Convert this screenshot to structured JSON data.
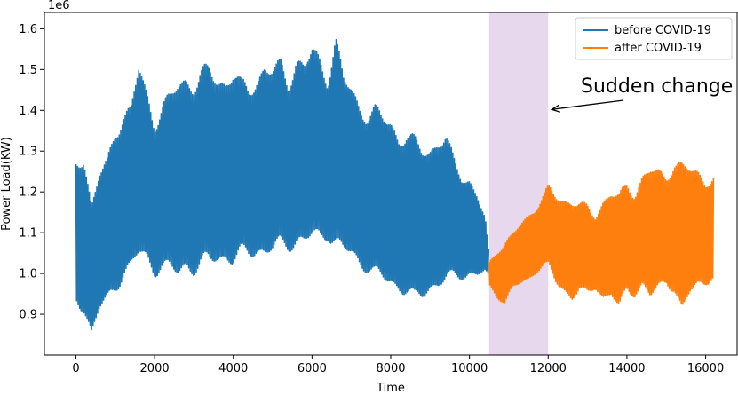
{
  "chart_data": {
    "type": "line",
    "xlabel": "Time",
    "ylabel": "Power Load(KW)",
    "y_offset_label": "1e6",
    "xlim": [
      -800,
      16800
    ],
    "ylim": [
      0.8,
      1.64
    ],
    "x_ticks": [
      0,
      2000,
      4000,
      6000,
      8000,
      10000,
      12000,
      14000,
      16000
    ],
    "x_tick_labels": [
      "0",
      "2000",
      "4000",
      "6000",
      "8000",
      "10000",
      "12000",
      "14000",
      "16000"
    ],
    "y_ticks": [
      0.9,
      1.0,
      1.1,
      1.2,
      1.3,
      1.4,
      1.5,
      1.6
    ],
    "y_tick_labels": [
      "0.9",
      "1.0",
      "1.1",
      "1.2",
      "1.3",
      "1.4",
      "1.5",
      "1.6"
    ],
    "grid": false,
    "legend_position": "top-right",
    "highlight_band": {
      "x": [
        10500,
        12000
      ],
      "color": "#e8d8ee"
    },
    "annotation": {
      "text": "Sudden change",
      "arrow_target": [
        12000,
        1.4
      ]
    },
    "series": [
      {
        "name": "before COVID-19",
        "color": "#1f77b4",
        "x": [
          0,
          200,
          400,
          600,
          800,
          1000,
          1200,
          1400,
          1600,
          1800,
          2000,
          2200,
          2400,
          2600,
          2800,
          3000,
          3200,
          3400,
          3600,
          3800,
          4000,
          4200,
          4400,
          4600,
          4800,
          5000,
          5200,
          5400,
          5600,
          5800,
          6000,
          6200,
          6400,
          6600,
          6800,
          7000,
          7200,
          7400,
          7600,
          7800,
          8000,
          8200,
          8400,
          8600,
          8800,
          9000,
          9200,
          9400,
          9600,
          9800,
          10000,
          10200,
          10400,
          10500
        ],
        "high": [
          1.29,
          1.31,
          1.18,
          1.26,
          1.29,
          1.37,
          1.41,
          1.42,
          1.53,
          1.46,
          1.39,
          1.43,
          1.45,
          1.49,
          1.5,
          1.49,
          1.51,
          1.52,
          1.5,
          1.49,
          1.52,
          1.48,
          1.47,
          1.5,
          1.53,
          1.52,
          1.53,
          1.49,
          1.55,
          1.53,
          1.57,
          1.54,
          1.5,
          1.6,
          1.5,
          1.47,
          1.43,
          1.41,
          1.42,
          1.4,
          1.39,
          1.35,
          1.36,
          1.34,
          1.32,
          1.32,
          1.34,
          1.35,
          1.29,
          1.25,
          1.24,
          1.2,
          1.14,
          1.05
        ],
        "low": [
          0.92,
          0.9,
          0.84,
          0.9,
          0.92,
          0.95,
          0.98,
          1.0,
          1.03,
          1.02,
          0.99,
          1.0,
          0.99,
          0.98,
          1.0,
          0.99,
          1.0,
          1.01,
          1.02,
          1.02,
          1.01,
          1.03,
          1.03,
          1.04,
          1.03,
          1.04,
          1.05,
          1.05,
          1.06,
          1.06,
          1.07,
          1.07,
          1.08,
          1.05,
          1.04,
          1.03,
          1.01,
          1.0,
          0.98,
          0.97,
          0.96,
          0.95,
          0.94,
          0.92,
          0.93,
          0.95,
          0.96,
          0.97,
          0.98,
          0.98,
          0.99,
          0.99,
          1.0,
          0.99
        ]
      },
      {
        "name": "after COVID-19",
        "color": "#ff7f0e",
        "x": [
          10500,
          10700,
          10900,
          11100,
          11300,
          11500,
          11700,
          11900,
          12000,
          12200,
          12400,
          12600,
          12800,
          13000,
          13200,
          13400,
          13600,
          13800,
          14000,
          14200,
          14400,
          14600,
          14800,
          15000,
          15200,
          15400,
          15600,
          15800,
          16000,
          16200
        ],
        "high": [
          1.03,
          1.06,
          1.08,
          1.1,
          1.13,
          1.15,
          1.17,
          1.2,
          1.22,
          1.2,
          1.19,
          1.19,
          1.18,
          1.17,
          1.15,
          1.19,
          1.21,
          1.2,
          1.23,
          1.21,
          1.25,
          1.27,
          1.26,
          1.25,
          1.29,
          1.28,
          1.27,
          1.26,
          1.24,
          1.25
        ],
        "low": [
          0.97,
          0.94,
          0.92,
          0.96,
          0.97,
          0.98,
          1.0,
          1.01,
          1.01,
          0.97,
          0.95,
          0.93,
          0.95,
          0.94,
          0.96,
          0.93,
          0.94,
          0.9,
          0.95,
          0.94,
          0.96,
          0.93,
          0.95,
          0.97,
          0.95,
          0.89,
          0.94,
          0.96,
          0.97,
          0.98
        ]
      }
    ]
  }
}
